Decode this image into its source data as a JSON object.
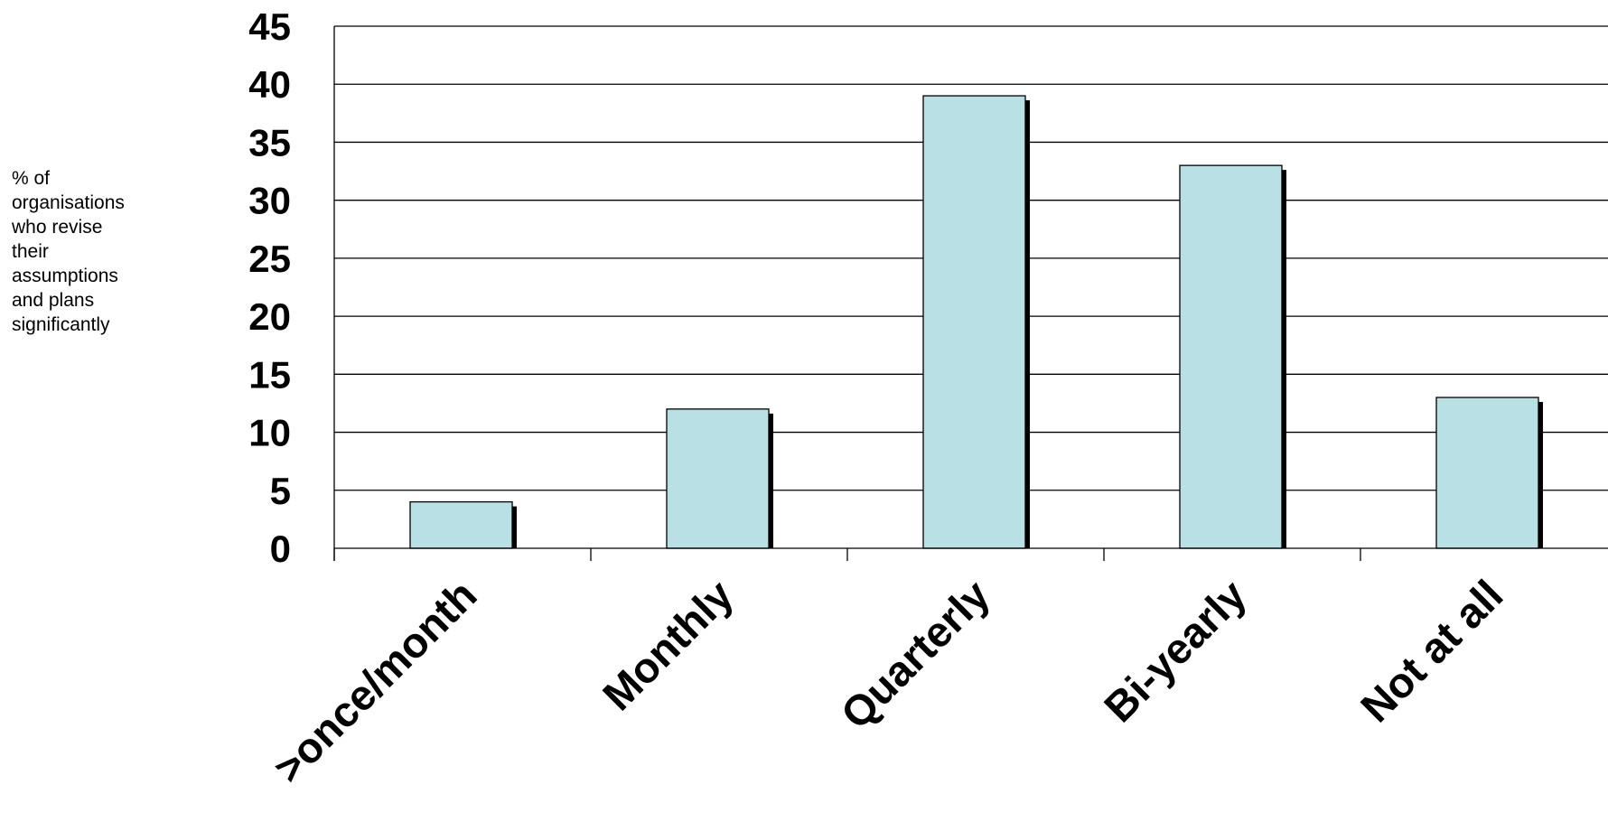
{
  "chart_data": {
    "type": "bar",
    "title": "",
    "xlabel": "",
    "ylabel": "% of\norganisations\nwho revise\ntheir\nassumptions\nand plans\nsignificantly",
    "categories": [
      ">once/month",
      "Monthly",
      "Quarterly",
      "Bi-yearly",
      "Not at all"
    ],
    "values": [
      4,
      12,
      39,
      33,
      13
    ],
    "ylim": [
      0,
      45
    ],
    "yticks": [
      "0",
      "5",
      "10",
      "15",
      "20",
      "25",
      "30",
      "35",
      "40",
      "45"
    ],
    "grid": true,
    "legend": "none",
    "colors": {
      "bar_fill": "#b9e0e5",
      "bar_stroke": "#000000",
      "bar_shadow": "#000000",
      "grid": "#000000",
      "text": "#000000"
    }
  }
}
